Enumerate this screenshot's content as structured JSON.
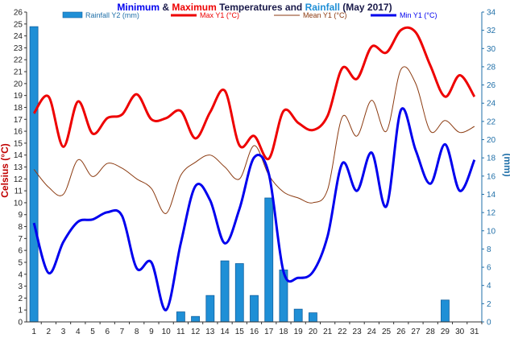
{
  "title": {
    "part1": "Minimum",
    "part2": " & ",
    "part3": "Maximum",
    "part4": " Temperatures and ",
    "part5": "Rainfall",
    "part6": " (May 2017)"
  },
  "colors": {
    "min": "#0000ee",
    "max": "#ee0000",
    "mean": "#8b3a10",
    "rain": "#1f8fd6",
    "rain_edge": "#1060a0",
    "right_axis": "#1f6fa8",
    "left_axis_label": "#c00000",
    "title_dark": "#1a1a4a"
  },
  "chart_data": {
    "type": "bar+line",
    "title": "Minimum & Maximum Temperatures and Rainfall (May 2017)",
    "ylabel": "Celsius (°C)",
    "y2label": "(mm)",
    "ylim": [
      0,
      26
    ],
    "y2lim": [
      0,
      34
    ],
    "grid": false,
    "legend": "top",
    "categories": [
      "1",
      "2",
      "3",
      "4",
      "5",
      "6",
      "7",
      "8",
      "9",
      "10",
      "11",
      "12",
      "13",
      "14",
      "15",
      "16",
      "17",
      "18",
      "19",
      "20",
      "21",
      "22",
      "23",
      "24",
      "25",
      "26",
      "27",
      "28",
      "29",
      "30",
      "31"
    ],
    "series": [
      {
        "name": "Rainfall Y2 (mm)",
        "type": "bar",
        "axis": "y2",
        "values": [
          32.4,
          0,
          0,
          0,
          0,
          0,
          0,
          0,
          0,
          0,
          1.1,
          0.6,
          2.9,
          6.7,
          6.4,
          2.9,
          13.6,
          5.7,
          1.4,
          1.0,
          0,
          0,
          0,
          0,
          0,
          0,
          0,
          0,
          2.4,
          0,
          0
        ]
      },
      {
        "name": "Max Y1 (°C)",
        "type": "line",
        "axis": "y1",
        "values": [
          17.5,
          18.9,
          14.7,
          18.5,
          15.8,
          17.1,
          17.4,
          19.1,
          17.0,
          17.1,
          17.7,
          15.4,
          17.6,
          19.4,
          14.8,
          15.6,
          13.7,
          17.7,
          16.7,
          16.1,
          17.3,
          21.3,
          20.4,
          23.1,
          22.6,
          24.5,
          24.3,
          21.5,
          18.9,
          20.7,
          18.9
        ]
      },
      {
        "name": "Mean Y1 (°C)",
        "type": "line",
        "axis": "y1",
        "values": [
          12.8,
          11.3,
          10.7,
          13.6,
          12.2,
          13.3,
          12.9,
          12.0,
          11.2,
          9.1,
          12.3,
          13.4,
          14.0,
          13.0,
          12.0,
          14.8,
          12.3,
          10.9,
          10.4,
          10.0,
          11.1,
          17.2,
          15.6,
          18.6,
          16.0,
          21.2,
          20.0,
          16.0,
          16.9,
          15.9,
          16.4
        ]
      },
      {
        "name": "Min Y1 (°C)",
        "type": "line",
        "axis": "y1",
        "values": [
          8.3,
          4.1,
          6.7,
          8.4,
          8.6,
          9.2,
          8.9,
          4.5,
          5.0,
          1.0,
          6.6,
          11.4,
          10.2,
          6.6,
          9.5,
          13.8,
          12.4,
          4.2,
          3.7,
          4.2,
          7.2,
          13.3,
          11.0,
          14.2,
          9.7,
          17.8,
          14.4,
          11.6,
          14.9,
          11.0,
          13.6
        ]
      }
    ]
  }
}
